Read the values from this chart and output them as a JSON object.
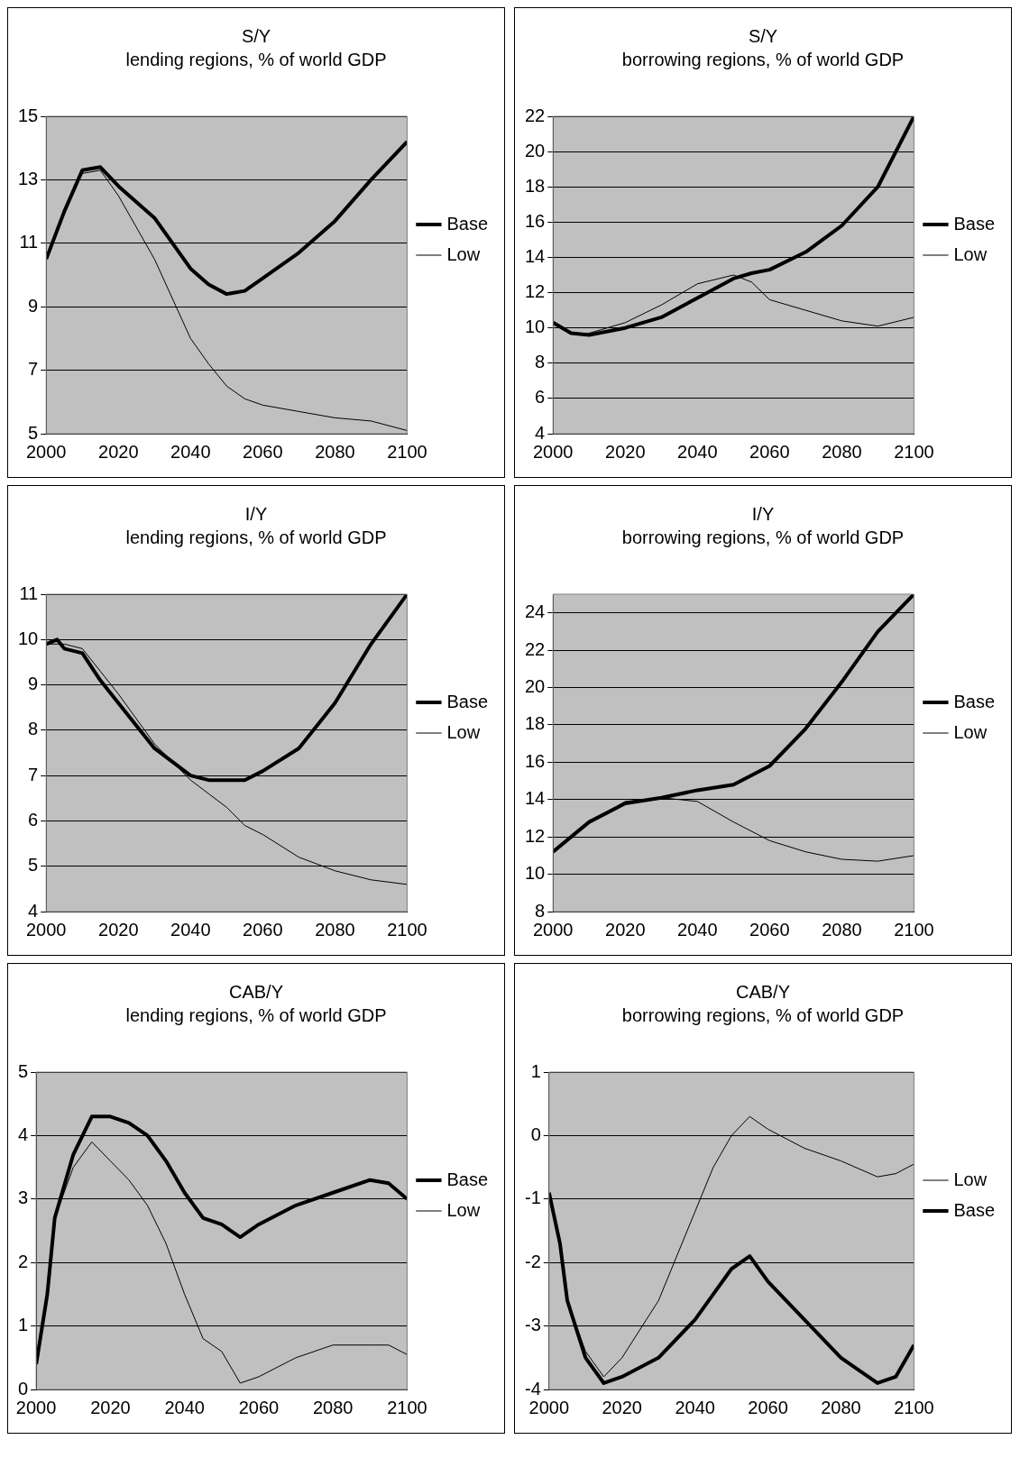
{
  "chart_data": [
    {
      "type": "line",
      "title": "S/Y",
      "subtitle": "lending regions, % of world GDP",
      "xlim": [
        2000,
        2100
      ],
      "xticks": [
        2000,
        2020,
        2040,
        2060,
        2080,
        2100
      ],
      "ylim": [
        5,
        15
      ],
      "yticks": [
        5,
        7,
        9,
        11,
        13,
        15
      ],
      "grid": "y",
      "legend": "right",
      "x": [
        2000,
        2005,
        2010,
        2015,
        2020,
        2030,
        2040,
        2045,
        2050,
        2055,
        2060,
        2070,
        2080,
        2090,
        2100
      ],
      "series": [
        {
          "name": "Base",
          "color": "#000000",
          "values": [
            10.5,
            12,
            13.3,
            13.4,
            12.8,
            11.8,
            10.2,
            9.7,
            9.4,
            9.5,
            9.9,
            10.7,
            11.7,
            13,
            14.2
          ]
        },
        {
          "name": "Low",
          "color": "#000000",
          "values": [
            10.5,
            12,
            13.2,
            13.3,
            12.5,
            10.5,
            8,
            7.2,
            6.5,
            6.1,
            5.9,
            5.7,
            5.5,
            5.4,
            5.1
          ]
        }
      ]
    },
    {
      "type": "line",
      "title": "S/Y",
      "subtitle": "borrowing regions, % of world GDP",
      "xlim": [
        2000,
        2100
      ],
      "xticks": [
        2000,
        2020,
        2040,
        2060,
        2080,
        2100
      ],
      "ylim": [
        4,
        22
      ],
      "yticks": [
        4,
        6,
        8,
        10,
        12,
        14,
        16,
        18,
        20,
        22
      ],
      "grid": "y",
      "legend": "right",
      "x": [
        2000,
        2005,
        2010,
        2020,
        2030,
        2040,
        2050,
        2055,
        2060,
        2070,
        2080,
        2090,
        2100
      ],
      "series": [
        {
          "name": "Base",
          "color": "#000000",
          "values": [
            10.3,
            9.7,
            9.6,
            10,
            10.6,
            11.7,
            12.8,
            13.1,
            13.3,
            14.3,
            15.8,
            18,
            22
          ]
        },
        {
          "name": "Low",
          "color": "#000000",
          "values": [
            10.3,
            9.7,
            9.7,
            10.3,
            11.3,
            12.5,
            13,
            12.6,
            11.6,
            11,
            10.4,
            10.1,
            10.6
          ]
        }
      ]
    },
    {
      "type": "line",
      "title": "I/Y",
      "subtitle": "lending regions, % of world GDP",
      "xlim": [
        2000,
        2100
      ],
      "xticks": [
        2000,
        2020,
        2040,
        2060,
        2080,
        2100
      ],
      "ylim": [
        4,
        11
      ],
      "yticks": [
        4,
        5,
        6,
        7,
        8,
        9,
        10,
        11
      ],
      "grid": "y",
      "legend": "right",
      "x": [
        2000,
        2003,
        2005,
        2010,
        2015,
        2020,
        2030,
        2040,
        2045,
        2050,
        2055,
        2060,
        2070,
        2080,
        2090,
        2100
      ],
      "series": [
        {
          "name": "Base",
          "color": "#000000",
          "values": [
            9.9,
            10,
            9.8,
            9.7,
            9.1,
            8.6,
            7.6,
            7,
            6.9,
            6.9,
            6.9,
            7.1,
            7.6,
            8.6,
            9.9,
            11
          ]
        },
        {
          "name": "Low",
          "color": "#000000",
          "values": [
            9.9,
            9.9,
            9.9,
            9.8,
            9.3,
            8.8,
            7.7,
            6.9,
            6.6,
            6.3,
            5.9,
            5.7,
            5.2,
            4.9,
            4.7,
            4.6
          ]
        }
      ]
    },
    {
      "type": "line",
      "title": "I/Y",
      "subtitle": "borrowing regions, % of world GDP",
      "xlim": [
        2000,
        2100
      ],
      "xticks": [
        2000,
        2020,
        2040,
        2060,
        2080,
        2100
      ],
      "ylim": [
        8,
        25
      ],
      "yticks": [
        8,
        10,
        12,
        14,
        16,
        18,
        20,
        22,
        24
      ],
      "grid": "y",
      "legend": "right",
      "x": [
        2000,
        2010,
        2020,
        2030,
        2040,
        2050,
        2060,
        2070,
        2080,
        2090,
        2100
      ],
      "series": [
        {
          "name": "Base",
          "color": "#000000",
          "values": [
            11.2,
            12.8,
            13.8,
            14.1,
            14.5,
            14.8,
            15.8,
            17.8,
            20.3,
            23,
            25
          ]
        },
        {
          "name": "Low",
          "color": "#000000",
          "values": [
            11.2,
            12.8,
            13.9,
            14.1,
            13.9,
            12.8,
            11.8,
            11.2,
            10.8,
            10.7,
            11
          ]
        }
      ]
    },
    {
      "type": "line",
      "title": "CAB/Y",
      "subtitle": "lending regions, % of world GDP",
      "xlim": [
        2000,
        2100
      ],
      "xticks": [
        2000,
        2020,
        2040,
        2060,
        2080,
        2100
      ],
      "ylim": [
        0,
        5
      ],
      "yticks": [
        0,
        1,
        2,
        3,
        4,
        5
      ],
      "grid": "y",
      "legend": "right",
      "x": [
        2000,
        2003,
        2005,
        2010,
        2015,
        2020,
        2025,
        2030,
        2035,
        2040,
        2045,
        2050,
        2055,
        2060,
        2070,
        2080,
        2090,
        2095,
        2100
      ],
      "series": [
        {
          "name": "Base",
          "color": "#000000",
          "values": [
            0.4,
            1.5,
            2.7,
            3.7,
            4.3,
            4.3,
            4.2,
            4,
            3.6,
            3.1,
            2.7,
            2.6,
            2.4,
            2.6,
            2.9,
            3.1,
            3.3,
            3.25,
            3
          ]
        },
        {
          "name": "Low",
          "color": "#000000",
          "values": [
            0.4,
            1.5,
            2.7,
            3.5,
            3.9,
            3.6,
            3.3,
            2.9,
            2.3,
            1.5,
            0.8,
            0.6,
            0.1,
            0.2,
            0.5,
            0.7,
            0.7,
            0.7,
            0.55
          ]
        }
      ]
    },
    {
      "type": "line",
      "title": "CAB/Y",
      "subtitle": "borrowing regions, % of world GDP",
      "xlim": [
        2000,
        2100
      ],
      "xticks": [
        2000,
        2020,
        2040,
        2060,
        2080,
        2100
      ],
      "ylim": [
        -4,
        1
      ],
      "yticks": [
        -4,
        -3,
        -2,
        -1,
        0,
        1
      ],
      "grid": "y",
      "legend": "right",
      "x": [
        2000,
        2003,
        2005,
        2010,
        2015,
        2020,
        2030,
        2040,
        2045,
        2050,
        2055,
        2060,
        2070,
        2080,
        2090,
        2095,
        2100
      ],
      "series": [
        {
          "name": "Low",
          "color": "#000000",
          "values": [
            -0.9,
            -1.7,
            -2.6,
            -3.4,
            -3.8,
            -3.5,
            -2.6,
            -1.2,
            -0.5,
            0,
            0.3,
            0.1,
            -0.2,
            -0.4,
            -0.65,
            -0.6,
            -0.45
          ]
        },
        {
          "name": "Base",
          "color": "#000000",
          "values": [
            -0.9,
            -1.7,
            -2.6,
            -3.5,
            -3.9,
            -3.8,
            -3.5,
            -2.9,
            -2.5,
            -2.1,
            -1.9,
            -2.3,
            -2.9,
            -3.5,
            -3.9,
            -3.8,
            -3.3
          ]
        }
      ]
    }
  ]
}
